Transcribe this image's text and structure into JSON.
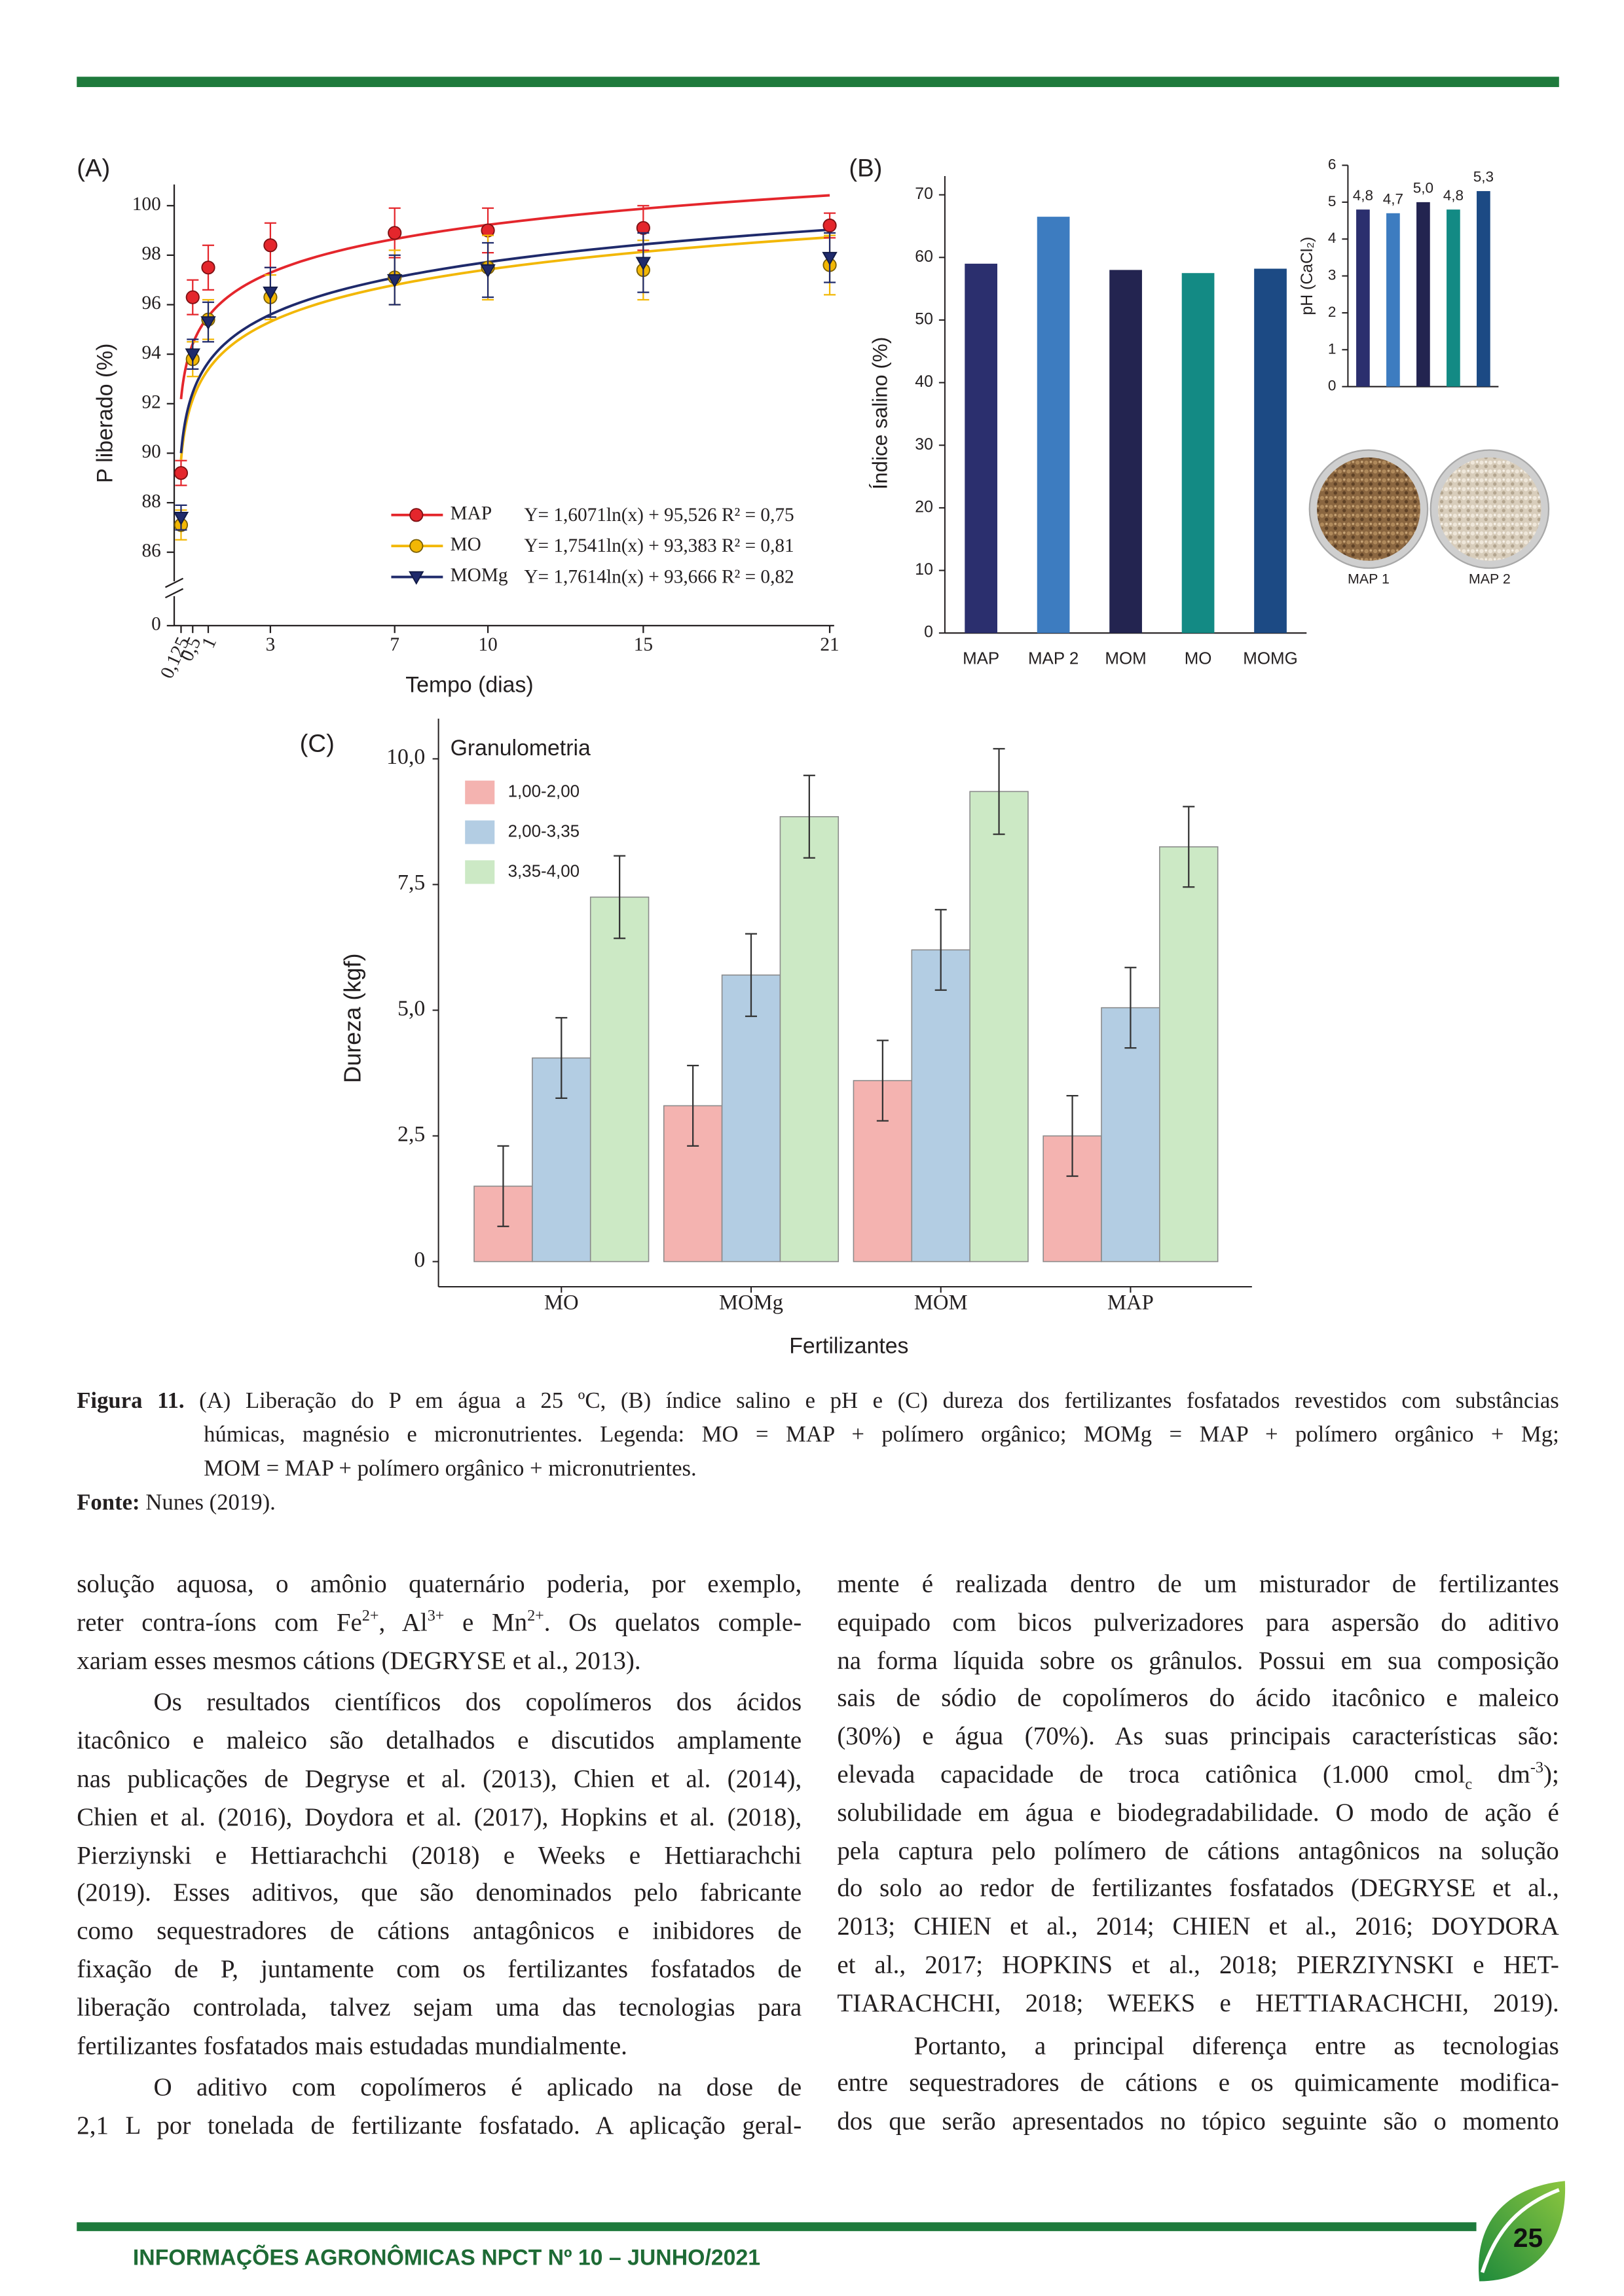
{
  "chart_data": [
    {
      "type": "line",
      "panel": "(A)",
      "xlabel": "Tempo (dias)",
      "ylabel": "P liberado (%)",
      "xlim": [
        0,
        21
      ],
      "xticks": [
        {
          "value": 0.125,
          "label": "0,125"
        },
        {
          "value": 0.5,
          "label": "0,5"
        },
        1,
        3,
        7,
        10,
        15,
        21
      ],
      "ylim": [
        0,
        100.5
      ],
      "axis_break": [
        0,
        85
      ],
      "yticks": [
        0,
        86,
        88,
        90,
        92,
        94,
        96,
        98,
        100
      ],
      "x": [
        0.125,
        0.5,
        1,
        3,
        7,
        10,
        15,
        21
      ],
      "series": [
        {
          "name": "MAP",
          "color": "#e4262c",
          "marker": "circle",
          "values": [
            89.2,
            96.3,
            97.5,
            98.4,
            98.9,
            99.0,
            99.1,
            99.2
          ],
          "errors": [
            0.5,
            0.7,
            0.9,
            0.9,
            1.0,
            0.9,
            0.9,
            0.5
          ],
          "equation": "Y= 1,6071ln(x) + 95,526 R² = 0,75",
          "fit": [
            1.6071,
            95.526
          ]
        },
        {
          "name": "MO",
          "color": "#f2b705",
          "marker": "circle",
          "values": [
            87.1,
            93.8,
            95.4,
            96.3,
            97.1,
            97.5,
            97.4,
            97.6
          ],
          "errors": [
            0.6,
            0.7,
            0.8,
            0.9,
            1.1,
            1.3,
            1.2,
            1.2
          ],
          "equation": "Y= 1,7541ln(x) + 93,383 R² = 0,81",
          "fit": [
            1.7541,
            93.383
          ]
        },
        {
          "name": "MOMg",
          "color": "#1f2a6b",
          "marker": "triangle",
          "values": [
            87.4,
            94.0,
            95.3,
            96.5,
            97.0,
            97.4,
            97.7,
            97.9
          ],
          "errors": [
            0.5,
            0.6,
            0.8,
            1.0,
            1.0,
            1.1,
            1.2,
            1.0
          ],
          "equation": "Y= 1,7614ln(x) + 93,666 R² = 0,82",
          "fit": [
            1.7614,
            93.666
          ]
        }
      ]
    },
    {
      "type": "bar",
      "panel": "(B)",
      "ylabel": "Índice salino (%)",
      "categories": [
        "MAP",
        "MAP 2",
        "MOM",
        "MO",
        "MOMG"
      ],
      "values": [
        59,
        66.5,
        58,
        57.5,
        58.2
      ],
      "colors": [
        "#2b2f6e",
        "#3d7cc0",
        "#232450",
        "#138a84",
        "#1c4a84"
      ],
      "ylim": [
        0,
        73
      ],
      "yticks": [
        0,
        10,
        20,
        30,
        40,
        50,
        60,
        70
      ]
    },
    {
      "type": "bar",
      "ylabel": "pH (CaCl₂)",
      "values": [
        4.8,
        4.7,
        5.0,
        4.8,
        5.3
      ],
      "value_labels": [
        "4,8",
        "4,7",
        "5,0",
        "4,8",
        "5,3"
      ],
      "colors": [
        "#2b2f6e",
        "#3d7cc0",
        "#232450",
        "#138a84",
        "#1c4a84"
      ],
      "ylim": [
        0,
        6
      ],
      "yticks": [
        0,
        1,
        2,
        3,
        4,
        5,
        6
      ]
    },
    {
      "type": "grouped_bar",
      "panel": "(C)",
      "xlabel": "Fertilizantes",
      "ylabel": "Dureza (kgf)",
      "legend_title": "Granulometria",
      "legend": "upper left",
      "categories": [
        "MO",
        "MOMg",
        "MOM",
        "MAP"
      ],
      "series": [
        {
          "name": "1,00-2,00",
          "color": "#f4b3b0",
          "values": [
            1.5,
            3.1,
            3.6,
            2.5
          ],
          "errors": [
            0.8,
            0.8,
            0.8,
            0.8
          ]
        },
        {
          "name": "2,00-3,35",
          "color": "#b3cde3",
          "values": [
            4.05,
            5.7,
            6.2,
            5.05
          ],
          "errors": [
            0.8,
            0.82,
            0.8,
            0.8
          ]
        },
        {
          "name": "3,35-4,00",
          "color": "#cce9c5",
          "values": [
            7.25,
            8.85,
            9.35,
            8.25
          ],
          "errors": [
            0.82,
            0.82,
            0.85,
            0.8
          ]
        }
      ],
      "ylim": [
        -0.5,
        10.8
      ],
      "yticks": [
        0,
        {
          "value": 2.5,
          "label": "2,5"
        },
        {
          "value": 5,
          "label": "5,0"
        },
        {
          "value": 7.5,
          "label": "7,5"
        },
        {
          "value": 10,
          "label": "10,0"
        }
      ]
    }
  ],
  "photos": {
    "labels": [
      "MAP 1",
      "MAP 2"
    ]
  },
  "caption": {
    "label": "Figura 11.",
    "lines": [
      "(A) Liberação do P em água a 25 ºC, (B) índice salino e pH e (C) dureza dos fertilizantes fosfatados revestidos com substâncias",
      "húmicas, magnésio e micronutrientes. Legenda: MO = MAP + polímero orgânico; MOMg = MAP + polímero orgânico + Mg;",
      "MOM = MAP + polímero orgânico + micronutrientes."
    ],
    "source_label": "Fonte:",
    "source": "Nunes (2019)."
  },
  "body": {
    "columns": [
      [
        {
          "indent": false,
          "lines": [
            "solução aquosa, o amônio quaternário poderia, por exemplo,",
            [
              "reter contra-íons com Fe",
              {
                "sup": "2+"
              },
              ", Al",
              {
                "sup": "3+"
              },
              " e Mn",
              {
                "sup": "2+"
              },
              ". Os quelatos comple-"
            ],
            "xariam esses mesmos cátions (DEGRYSE et al., 2013)."
          ]
        },
        {
          "indent": true,
          "lines": [
            "Os resultados científicos dos copolímeros dos ácidos",
            "itacônico e maleico são detalhados e discutidos amplamente",
            "nas publicações de Degryse et al. (2013), Chien et al. (2014),",
            "Chien et al. (2016), Doydora et al. (2017), Hopkins et al. (2018),",
            "Pierziynski e Hettiarachchi (2018) e Weeks e Hettiarachchi",
            "(2019). Esses aditivos, que são denominados pelo fabricante",
            "como sequestradores de cátions antagônicos e inibidores de",
            "fixação de P, juntamente com os fertilizantes fosfatados de",
            "liberação controlada, talvez sejam uma das tecnologias para",
            "fertilizantes fosfatados mais estudadas mundialmente."
          ]
        },
        {
          "indent": true,
          "continues": true,
          "lines": [
            "O aditivo com copolímeros é aplicado na dose de",
            "2,1 L por tonelada de fertilizante fosfatado. A aplicação geral-"
          ]
        }
      ],
      [
        {
          "indent": false,
          "continues": true,
          "lines": [
            "mente é realizada dentro de um misturador de fertilizantes",
            "equipado com bicos pulverizadores para aspersão do aditivo",
            "na forma líquida sobre os grânulos. Possui em sua composição",
            "sais de sódio de copolímeros do ácido itacônico e maleico",
            "(30%) e água (70%). As suas principais características são:",
            [
              "elevada capacidade de troca catiônica (1.000 cmol",
              {
                "sub": "c"
              },
              " dm",
              {
                "sup": "-3"
              },
              ");"
            ],
            "solubilidade em água e biodegradabilidade. O modo de ação é",
            "pela captura pelo polímero de cátions antagônicos na solução",
            "do solo ao redor de fertilizantes fosfatados (DEGRYSE et al.,",
            "2013; CHIEN et al., 2014; CHIEN et al., 2016; DOYDORA",
            "et al., 2017; HOPKINS et al., 2018; PIERZIYNSKI e HET-",
            "TIARACHCHI, 2018; WEEKS e HETTIARACHCHI, 2019)."
          ]
        },
        {
          "indent": true,
          "continues": true,
          "lines": [
            "Portanto, a principal diferença entre as tecnologias",
            "entre sequestradores de cátions e os quimicamente modifica-",
            "dos que serão apresentados no tópico seguinte são o momento"
          ]
        }
      ]
    ]
  },
  "footer": {
    "text": "INFORMAÇÕES AGRONÔMICAS NPCT Nº 10 – JUNHO/2021",
    "page": "25"
  }
}
